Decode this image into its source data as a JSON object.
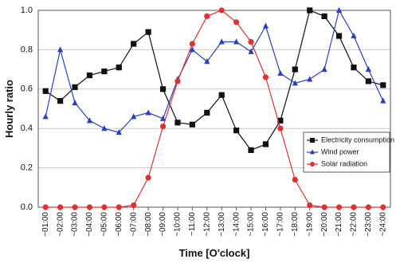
{
  "chart_data": {
    "type": "line",
    "xlabel": "Time [O'clock]",
    "ylabel": "Hourly ratio",
    "ylim": [
      0.0,
      1.0
    ],
    "yticks": [
      "0.0",
      "0.2",
      "0.4",
      "0.6",
      "0.8",
      "1.0"
    ],
    "categories": [
      "~01:00",
      "~02:00",
      "~03:00",
      "~04:00",
      "~05:00",
      "~06:00",
      "~07:00",
      "~08:00",
      "~09:00",
      "~10:00",
      "~11:00",
      "~12:00",
      "~13:00",
      "~14:00",
      "~15:00",
      "~16:00",
      "~17:00",
      "~18:00",
      "~19:00",
      "~20:00",
      "~21:00",
      "~22:00",
      "~23:00",
      "~24:00"
    ],
    "grid": "horizontal",
    "legend_position": "bottom-right",
    "series": [
      {
        "name": "Electricity consumption",
        "color": "#111111",
        "marker": "square",
        "values": [
          0.59,
          0.54,
          0.61,
          0.67,
          0.69,
          0.71,
          0.83,
          0.89,
          0.6,
          0.43,
          0.42,
          0.48,
          0.57,
          0.39,
          0.29,
          0.32,
          0.44,
          0.7,
          1.0,
          0.97,
          0.87,
          0.71,
          0.64,
          0.62
        ]
      },
      {
        "name": "Wind power",
        "color": "#2a3fbf",
        "marker": "triangle",
        "values": [
          0.46,
          0.8,
          0.53,
          0.44,
          0.4,
          0.38,
          0.46,
          0.48,
          0.45,
          0.65,
          0.8,
          0.74,
          0.84,
          0.84,
          0.79,
          0.92,
          0.68,
          0.63,
          0.65,
          0.7,
          1.0,
          0.87,
          0.7,
          0.54
        ]
      },
      {
        "name": "Solar radiation",
        "color": "#e03030",
        "marker": "circle",
        "values": [
          0.0,
          0.0,
          0.0,
          0.0,
          0.0,
          0.0,
          0.01,
          0.15,
          0.41,
          0.64,
          0.83,
          0.97,
          1.0,
          0.94,
          0.84,
          0.66,
          0.4,
          0.14,
          0.01,
          0.0,
          0.0,
          0.0,
          0.0,
          0.0
        ]
      }
    ]
  }
}
